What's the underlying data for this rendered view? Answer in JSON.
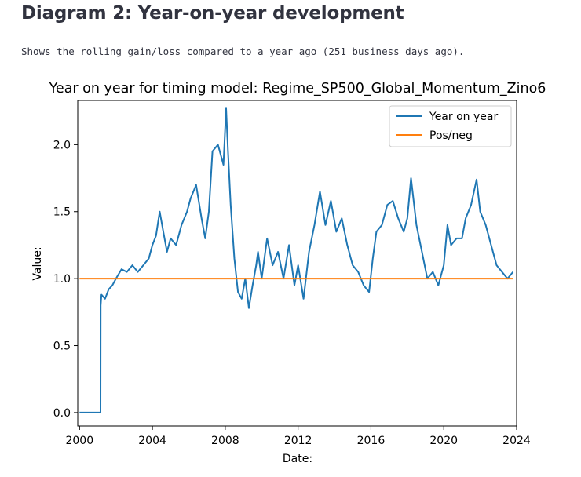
{
  "page": {
    "heading": "Diagram 2: Year-on-year development",
    "description": "Shows the rolling gain/loss compared to a year ago (251 business days ago)."
  },
  "chart_data": {
    "type": "line",
    "title": "Year on year for timing model: Regime_SP500_Global_Momentum_Zino6",
    "xlabel": "Date:",
    "ylabel": "Value:",
    "xlim": [
      1999.9,
      2024.0
    ],
    "ylim": [
      -0.1,
      2.33
    ],
    "xticks": [
      2000,
      2004,
      2008,
      2012,
      2016,
      2020,
      2024
    ],
    "yticks": [
      0.0,
      0.5,
      1.0,
      1.5,
      2.0
    ],
    "ytick_labels": [
      "0.0",
      "0.5",
      "1.0",
      "1.5",
      "2.0"
    ],
    "grid": false,
    "legend_position": "top-right",
    "series": [
      {
        "name": "Year on year",
        "color": "#1f77b4",
        "x": [
          2000.0,
          2001.15,
          2001.16,
          2001.2,
          2001.4,
          2001.6,
          2001.8,
          2002.0,
          2002.3,
          2002.6,
          2002.9,
          2003.2,
          2003.5,
          2003.8,
          2004.0,
          2004.2,
          2004.4,
          2004.6,
          2004.8,
          2005.0,
          2005.3,
          2005.6,
          2005.9,
          2006.1,
          2006.4,
          2006.7,
          2006.9,
          2007.1,
          2007.3,
          2007.6,
          2007.9,
          2008.05,
          2008.15,
          2008.3,
          2008.5,
          2008.7,
          2008.9,
          2009.1,
          2009.3,
          2009.5,
          2009.7,
          2009.8,
          2010.0,
          2010.3,
          2010.6,
          2010.9,
          2011.2,
          2011.5,
          2011.8,
          2012.0,
          2012.3,
          2012.6,
          2012.9,
          2013.2,
          2013.5,
          2013.8,
          2014.1,
          2014.4,
          2014.7,
          2015.0,
          2015.3,
          2015.6,
          2015.9,
          2016.1,
          2016.3,
          2016.6,
          2016.9,
          2017.2,
          2017.5,
          2017.8,
          2018.0,
          2018.2,
          2018.5,
          2018.8,
          2019.1,
          2019.4,
          2019.7,
          2020.0,
          2020.2,
          2020.4,
          2020.7,
          2021.0,
          2021.2,
          2021.5,
          2021.8,
          2022.0,
          2022.3,
          2022.6,
          2022.9,
          2023.2,
          2023.5,
          2023.8
        ],
        "values": [
          0.0,
          0.0,
          0.8,
          0.88,
          0.85,
          0.92,
          0.95,
          1.0,
          1.07,
          1.05,
          1.1,
          1.05,
          1.1,
          1.15,
          1.25,
          1.32,
          1.5,
          1.35,
          1.2,
          1.3,
          1.25,
          1.4,
          1.5,
          1.6,
          1.7,
          1.45,
          1.3,
          1.5,
          1.95,
          2.0,
          1.85,
          2.27,
          1.95,
          1.55,
          1.15,
          0.9,
          0.85,
          1.0,
          0.78,
          0.95,
          1.1,
          1.2,
          1.0,
          1.3,
          1.1,
          1.2,
          1.0,
          1.25,
          0.95,
          1.1,
          0.85,
          1.2,
          1.4,
          1.65,
          1.4,
          1.58,
          1.35,
          1.45,
          1.25,
          1.1,
          1.05,
          0.95,
          0.9,
          1.15,
          1.35,
          1.4,
          1.55,
          1.58,
          1.45,
          1.35,
          1.45,
          1.75,
          1.4,
          1.2,
          1.0,
          1.05,
          0.95,
          1.1,
          1.4,
          1.25,
          1.3,
          1.3,
          1.45,
          1.55,
          1.74,
          1.5,
          1.4,
          1.25,
          1.1,
          1.05,
          1.0,
          1.05
        ]
      },
      {
        "name": "Pos/neg",
        "color": "#ff7f0e",
        "x": [
          2000.0,
          2023.8
        ],
        "values": [
          1.0,
          1.0
        ]
      }
    ]
  }
}
